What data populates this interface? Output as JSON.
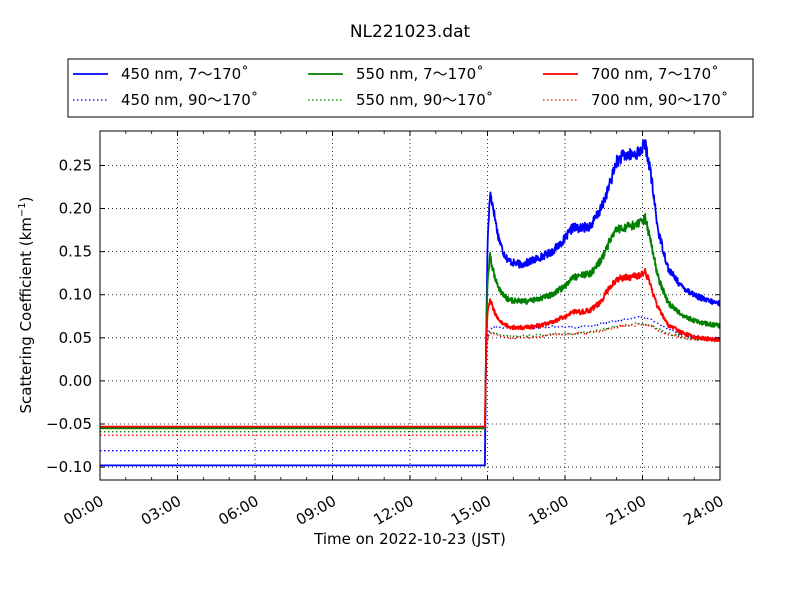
{
  "chart_data": {
    "type": "line",
    "title": "NL221023.dat",
    "xlabel": "Time on 2022-10-23 (JST)",
    "ylabel": "Scattering Coefficient (km",
    "ylabel_sup": "−1",
    "ylabel_close": ")",
    "xlim": [
      0,
      24
    ],
    "ylim": [
      -0.115,
      0.29
    ],
    "grid": true,
    "legend_position": "top",
    "x_ticks": [
      0,
      3,
      6,
      9,
      12,
      15,
      18,
      21,
      24
    ],
    "x_tick_labels": [
      "00:00",
      "03:00",
      "06:00",
      "09:00",
      "12:00",
      "15:00",
      "18:00",
      "21:00",
      "24:00"
    ],
    "y_ticks": [
      -0.1,
      -0.05,
      0.0,
      0.05,
      0.1,
      0.15,
      0.2,
      0.25
    ],
    "y_tick_labels": [
      "−0.10",
      "−0.05",
      "0.00",
      "0.05",
      "0.10",
      "0.15",
      "0.20",
      "0.25"
    ],
    "series": [
      {
        "name": "450 nm, 7～170˚",
        "color": "#0000ff",
        "style": "solid",
        "x": [
          0,
          14.9,
          14.95,
          15.0,
          15.1,
          15.2,
          15.4,
          15.6,
          15.8,
          16.0,
          16.3,
          16.6,
          17.0,
          17.5,
          18.0,
          18.3,
          18.6,
          19.0,
          19.4,
          19.7,
          20.0,
          20.3,
          20.6,
          20.9,
          21.1,
          21.3,
          21.6,
          22.0,
          22.5,
          23.0,
          23.5,
          24.0
        ],
        "y": [
          -0.098,
          -0.098,
          0.05,
          0.16,
          0.218,
          0.205,
          0.17,
          0.15,
          0.14,
          0.137,
          0.135,
          0.138,
          0.143,
          0.15,
          0.165,
          0.178,
          0.177,
          0.18,
          0.2,
          0.225,
          0.255,
          0.262,
          0.262,
          0.266,
          0.275,
          0.245,
          0.175,
          0.13,
          0.11,
          0.1,
          0.093,
          0.09
        ]
      },
      {
        "name": "550 nm, 7～170˚",
        "color": "#008000",
        "style": "solid",
        "x": [
          0,
          14.9,
          14.95,
          15.0,
          15.1,
          15.2,
          15.4,
          15.6,
          15.8,
          16.0,
          16.5,
          17.0,
          17.5,
          18.0,
          18.3,
          18.6,
          19.0,
          19.4,
          19.7,
          20.0,
          20.3,
          20.6,
          20.9,
          21.1,
          21.3,
          21.6,
          22.0,
          22.5,
          23.0,
          23.5,
          24.0
        ],
        "y": [
          -0.055,
          -0.055,
          0.05,
          0.115,
          0.145,
          0.13,
          0.11,
          0.1,
          0.095,
          0.093,
          0.092,
          0.095,
          0.1,
          0.11,
          0.12,
          0.122,
          0.125,
          0.14,
          0.16,
          0.175,
          0.177,
          0.18,
          0.182,
          0.188,
          0.165,
          0.12,
          0.09,
          0.077,
          0.07,
          0.066,
          0.064
        ]
      },
      {
        "name": "700 nm, 7～170˚",
        "color": "#ff0000",
        "style": "solid",
        "x": [
          0,
          14.9,
          14.95,
          15.0,
          15.1,
          15.2,
          15.4,
          15.6,
          15.8,
          16.0,
          16.5,
          17.0,
          17.5,
          18.0,
          18.3,
          18.6,
          19.0,
          19.4,
          19.7,
          20.0,
          20.3,
          20.6,
          20.9,
          21.1,
          21.3,
          21.6,
          22.0,
          22.5,
          23.0,
          23.5,
          24.0
        ],
        "y": [
          -0.053,
          -0.053,
          0.04,
          0.08,
          0.095,
          0.085,
          0.072,
          0.066,
          0.063,
          0.062,
          0.062,
          0.064,
          0.068,
          0.075,
          0.08,
          0.08,
          0.082,
          0.092,
          0.108,
          0.118,
          0.12,
          0.121,
          0.122,
          0.127,
          0.112,
          0.085,
          0.065,
          0.056,
          0.051,
          0.049,
          0.048
        ]
      },
      {
        "name": "450 nm, 90～170˚",
        "color": "#0000ff",
        "style": "dotted",
        "x": [
          0,
          14.9,
          14.95,
          15.0,
          15.1,
          15.3,
          15.6,
          16.0,
          16.5,
          17.0,
          17.5,
          18.0,
          18.5,
          19.0,
          19.5,
          20.0,
          20.5,
          21.0,
          21.3,
          21.6,
          22.0,
          22.5,
          23.0,
          23.5,
          24.0
        ],
        "y": [
          -0.081,
          -0.081,
          0.02,
          0.055,
          0.06,
          0.062,
          0.062,
          0.062,
          0.062,
          0.062,
          0.063,
          0.063,
          0.062,
          0.064,
          0.067,
          0.07,
          0.072,
          0.074,
          0.072,
          0.066,
          0.06,
          0.054,
          0.051,
          0.049,
          0.048
        ]
      },
      {
        "name": "550 nm, 90～170˚",
        "color": "#008000",
        "style": "dotted",
        "x": [
          0,
          14.9,
          14.95,
          15.0,
          15.1,
          15.3,
          15.6,
          16.0,
          16.5,
          17.0,
          17.5,
          18.0,
          18.5,
          19.0,
          19.5,
          20.0,
          20.5,
          21.0,
          21.3,
          21.6,
          22.0,
          22.5,
          23.0,
          23.5,
          24.0
        ],
        "y": [
          -0.059,
          -0.059,
          0.02,
          0.05,
          0.058,
          0.055,
          0.053,
          0.052,
          0.052,
          0.053,
          0.054,
          0.055,
          0.055,
          0.057,
          0.06,
          0.063,
          0.065,
          0.067,
          0.065,
          0.06,
          0.055,
          0.051,
          0.048,
          0.047,
          0.046
        ]
      },
      {
        "name": "700 nm, 90～170˚",
        "color": "#ff0000",
        "style": "dotted",
        "x": [
          0,
          14.9,
          14.95,
          15.0,
          15.1,
          15.3,
          15.6,
          16.0,
          16.5,
          17.0,
          17.5,
          18.0,
          18.5,
          19.0,
          19.5,
          20.0,
          20.5,
          21.0,
          21.3,
          21.6,
          22.0,
          22.5,
          23.0,
          23.5,
          24.0
        ],
        "y": [
          -0.063,
          -0.063,
          0.02,
          0.05,
          0.055,
          0.053,
          0.051,
          0.05,
          0.05,
          0.051,
          0.053,
          0.054,
          0.055,
          0.056,
          0.059,
          0.062,
          0.064,
          0.066,
          0.064,
          0.059,
          0.054,
          0.05,
          0.048,
          0.047,
          0.046
        ]
      }
    ]
  }
}
